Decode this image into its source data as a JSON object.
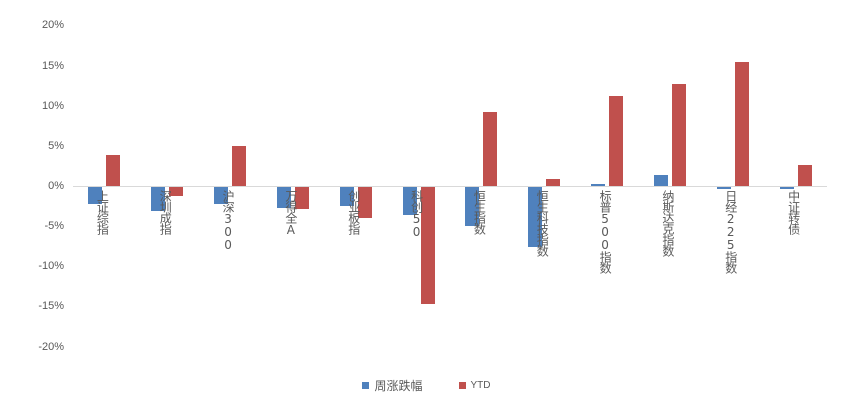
{
  "chart_data": {
    "type": "bar",
    "title": "",
    "xlabel": "",
    "ylabel": "",
    "ylim": [
      -20,
      20
    ],
    "yticks": [
      20,
      15,
      10,
      5,
      0,
      -5,
      -10,
      -15,
      -20
    ],
    "ytick_labels": [
      "20%",
      "15%",
      "10%",
      "5%",
      "0%",
      "-5%",
      "-10%",
      "-15%",
      "-20%"
    ],
    "grid": false,
    "legend_position": "bottom",
    "categories": [
      "上证综指",
      "深圳成指",
      "沪深300",
      "万得全A",
      "创业板指",
      "科创50",
      "恒生指数",
      "恒生科技指数",
      "标普500指数",
      "纳斯达克指数",
      "日经225指数",
      "中证转债"
    ],
    "series": [
      {
        "name": "周涨跌幅",
        "color": "#4f81bd",
        "values": [
          -2.1,
          -3.0,
          -2.1,
          -2.6,
          -2.4,
          -3.5,
          -4.8,
          -7.5,
          0.2,
          1.4,
          -0.3,
          -0.3
        ]
      },
      {
        "name": "YTD",
        "color": "#c0504d",
        "values": [
          3.9,
          -1.1,
          5.0,
          -2.8,
          -3.8,
          -14.6,
          9.2,
          0.9,
          11.2,
          12.7,
          15.5,
          2.6
        ]
      }
    ]
  },
  "legend": {
    "items": [
      {
        "label": "周涨跌幅",
        "color": "#4f81bd"
      },
      {
        "label": "YTD",
        "color": "#c0504d"
      }
    ]
  }
}
